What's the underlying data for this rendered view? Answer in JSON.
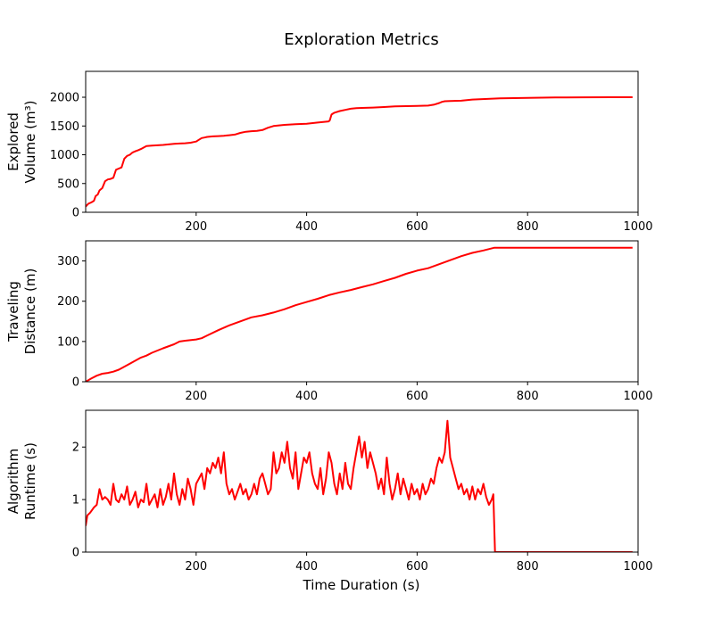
{
  "figure": {
    "title": "Exploration Metrics",
    "xlabel": "Time Duration (s)"
  },
  "chart_data": [
    {
      "type": "line",
      "ylabel_lines": [
        "Explored",
        "Volume (m³)"
      ],
      "xlim": [
        0,
        1000
      ],
      "ylim": [
        0,
        2450
      ],
      "xticks": [
        200,
        400,
        600,
        800,
        1000
      ],
      "yticks": [
        0,
        500,
        1000,
        1500,
        2000
      ],
      "grid": false,
      "color": "#ff0000",
      "series": [
        {
          "x": [
            0,
            5,
            10,
            15,
            18,
            22,
            25,
            30,
            35,
            40,
            45,
            50,
            55,
            60,
            65,
            70,
            75,
            80,
            85,
            90,
            95,
            100,
            110,
            120,
            130,
            140,
            150,
            160,
            170,
            180,
            190,
            195,
            200,
            205,
            210,
            215,
            220,
            230,
            240,
            250,
            260,
            270,
            280,
            290,
            300,
            310,
            320,
            330,
            340,
            350,
            360,
            380,
            400,
            420,
            430,
            440,
            442,
            445,
            450,
            460,
            470,
            480,
            490,
            500,
            520,
            540,
            560,
            580,
            600,
            620,
            630,
            640,
            645,
            650,
            660,
            680,
            700,
            750,
            800,
            850,
            900,
            950,
            990
          ],
          "y": [
            100,
            150,
            170,
            200,
            280,
            310,
            380,
            420,
            540,
            570,
            580,
            600,
            740,
            760,
            780,
            930,
            980,
            1000,
            1040,
            1060,
            1080,
            1100,
            1150,
            1160,
            1165,
            1170,
            1180,
            1190,
            1195,
            1200,
            1210,
            1220,
            1230,
            1260,
            1290,
            1300,
            1310,
            1320,
            1325,
            1330,
            1340,
            1350,
            1380,
            1400,
            1410,
            1415,
            1430,
            1470,
            1500,
            1510,
            1520,
            1530,
            1540,
            1560,
            1570,
            1580,
            1600,
            1700,
            1730,
            1760,
            1780,
            1800,
            1810,
            1815,
            1820,
            1830,
            1840,
            1845,
            1850,
            1855,
            1870,
            1900,
            1920,
            1930,
            1935,
            1940,
            1960,
            1980,
            1990,
            1995,
            1998,
            2000,
            2000
          ]
        }
      ]
    },
    {
      "type": "line",
      "ylabel_lines": [
        "Traveling",
        "Distance (m)"
      ],
      "xlim": [
        0,
        1000
      ],
      "ylim": [
        0,
        350
      ],
      "xticks": [
        200,
        400,
        600,
        800,
        1000
      ],
      "yticks": [
        0,
        100,
        200,
        300
      ],
      "grid": false,
      "color": "#ff0000",
      "series": [
        {
          "x": [
            0,
            10,
            20,
            30,
            40,
            50,
            60,
            80,
            100,
            110,
            120,
            140,
            160,
            170,
            180,
            200,
            210,
            220,
            240,
            260,
            280,
            300,
            320,
            340,
            360,
            380,
            400,
            420,
            440,
            460,
            480,
            500,
            520,
            540,
            560,
            580,
            600,
            620,
            640,
            660,
            680,
            700,
            720,
            740,
            760,
            800,
            850,
            900,
            950,
            990
          ],
          "y": [
            0,
            8,
            15,
            20,
            22,
            25,
            30,
            45,
            60,
            65,
            72,
            83,
            93,
            100,
            102,
            105,
            108,
            115,
            128,
            140,
            150,
            160,
            165,
            172,
            180,
            190,
            198,
            206,
            215,
            222,
            228,
            235,
            242,
            250,
            258,
            268,
            276,
            282,
            292,
            302,
            312,
            320,
            326,
            333,
            333,
            333,
            333,
            333,
            333,
            333
          ]
        }
      ]
    },
    {
      "type": "line",
      "ylabel_lines": [
        "Algorithm",
        "Runtime (s)"
      ],
      "xlim": [
        0,
        1000
      ],
      "ylim": [
        0,
        2.7
      ],
      "xticks": [
        200,
        400,
        600,
        800,
        1000
      ],
      "yticks": [
        0,
        1,
        2
      ],
      "grid": false,
      "color": "#ff0000",
      "series": [
        {
          "x": [
            0,
            3,
            8,
            15,
            20,
            25,
            30,
            35,
            40,
            45,
            50,
            55,
            60,
            65,
            70,
            75,
            80,
            85,
            90,
            95,
            100,
            105,
            110,
            115,
            120,
            125,
            130,
            135,
            140,
            145,
            150,
            155,
            160,
            165,
            170,
            175,
            180,
            185,
            190,
            195,
            200,
            205,
            210,
            215,
            220,
            225,
            230,
            235,
            240,
            245,
            250,
            255,
            260,
            265,
            270,
            275,
            280,
            285,
            290,
            295,
            300,
            305,
            310,
            315,
            320,
            325,
            330,
            335,
            340,
            345,
            350,
            355,
            360,
            365,
            370,
            375,
            380,
            385,
            390,
            395,
            400,
            405,
            410,
            415,
            420,
            425,
            430,
            435,
            440,
            445,
            450,
            455,
            460,
            465,
            470,
            475,
            480,
            485,
            490,
            495,
            500,
            505,
            510,
            515,
            520,
            525,
            530,
            535,
            540,
            545,
            550,
            555,
            560,
            565,
            570,
            575,
            580,
            585,
            590,
            595,
            600,
            605,
            610,
            615,
            620,
            625,
            630,
            635,
            640,
            645,
            650,
            655,
            660,
            665,
            670,
            675,
            680,
            685,
            690,
            695,
            700,
            705,
            710,
            715,
            720,
            725,
            730,
            735,
            738,
            741,
            742,
            760,
            800,
            850,
            900,
            950,
            990
          ],
          "y": [
            0.5,
            0.7,
            0.75,
            0.85,
            0.9,
            1.2,
            1.0,
            1.05,
            1.0,
            0.9,
            1.3,
            1.0,
            0.95,
            1.1,
            1.0,
            1.25,
            0.9,
            1.0,
            1.15,
            0.85,
            1.0,
            0.95,
            1.3,
            0.9,
            1.0,
            1.1,
            0.85,
            1.2,
            0.9,
            1.05,
            1.3,
            1.0,
            1.5,
            1.1,
            0.9,
            1.2,
            1.0,
            1.4,
            1.2,
            0.9,
            1.3,
            1.4,
            1.5,
            1.2,
            1.6,
            1.5,
            1.7,
            1.6,
            1.8,
            1.5,
            1.9,
            1.3,
            1.1,
            1.2,
            1.0,
            1.15,
            1.3,
            1.1,
            1.2,
            1.0,
            1.1,
            1.3,
            1.1,
            1.4,
            1.5,
            1.3,
            1.1,
            1.2,
            1.9,
            1.5,
            1.6,
            1.9,
            1.7,
            2.1,
            1.6,
            1.4,
            1.9,
            1.2,
            1.5,
            1.8,
            1.7,
            1.9,
            1.5,
            1.3,
            1.2,
            1.6,
            1.1,
            1.4,
            1.9,
            1.7,
            1.3,
            1.1,
            1.5,
            1.2,
            1.7,
            1.3,
            1.2,
            1.6,
            1.9,
            2.2,
            1.8,
            2.1,
            1.6,
            1.9,
            1.7,
            1.5,
            1.2,
            1.4,
            1.1,
            1.8,
            1.3,
            1.0,
            1.2,
            1.5,
            1.1,
            1.4,
            1.2,
            1.0,
            1.3,
            1.1,
            1.2,
            1.0,
            1.3,
            1.1,
            1.2,
            1.4,
            1.3,
            1.6,
            1.8,
            1.7,
            1.9,
            2.5,
            1.8,
            1.6,
            1.4,
            1.2,
            1.3,
            1.1,
            1.2,
            1.0,
            1.25,
            1.0,
            1.2,
            1.1,
            1.3,
            1.05,
            0.9,
            1.0,
            1.1,
            0.0,
            0.0,
            0.0,
            0.0,
            0.0,
            0.0,
            0.0,
            0.0
          ]
        }
      ]
    }
  ]
}
